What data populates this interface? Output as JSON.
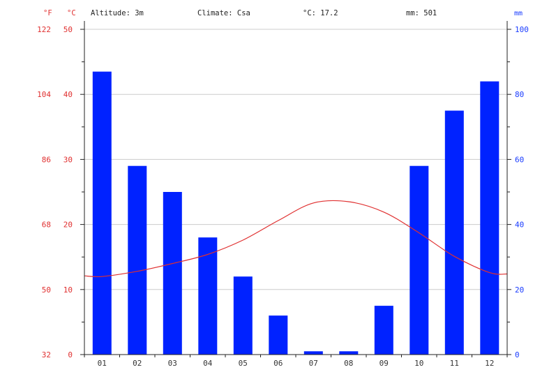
{
  "header": {
    "altitude": "Altitude: 3m",
    "climate": "Climate: Csa",
    "mean_temp": "°C: 17.2",
    "total_precip": "mm: 501"
  },
  "axis_units": {
    "fahrenheit": "°F",
    "celsius": "°C",
    "millimetre": "mm"
  },
  "colors": {
    "temperature": "#ff0000",
    "temperature_line": "#e03030",
    "precipitation": "#0022ff",
    "axis_blue": "#1a3cff",
    "grid": "#cccccc"
  },
  "chart_data": {
    "type": "bar",
    "categories": [
      "01",
      "02",
      "03",
      "04",
      "05",
      "06",
      "07",
      "08",
      "09",
      "10",
      "11",
      "12"
    ],
    "series": [
      {
        "type": "bar",
        "axis": "right",
        "values": [
          87,
          58,
          50,
          36,
          24,
          12,
          1,
          1,
          15,
          58,
          75,
          84
        ]
      },
      {
        "type": "line",
        "axis": "left",
        "values": [
          12.0,
          12.8,
          14.0,
          15.4,
          17.6,
          20.6,
          23.3,
          23.5,
          21.9,
          18.7,
          15.1,
          12.6
        ]
      }
    ],
    "y_left": {
      "unit": "°C",
      "range": [
        0,
        50
      ],
      "ticks": [
        "0",
        "10",
        "20",
        "30",
        "40",
        "50"
      ]
    },
    "y_left_outer": {
      "unit": "°F",
      "ticks": [
        "32",
        "50",
        "68",
        "86",
        "104",
        "122"
      ]
    },
    "y_right": {
      "unit": "mm",
      "range": [
        0,
        100
      ],
      "ticks": [
        "0",
        "20",
        "40",
        "60",
        "80",
        "100"
      ]
    },
    "grid": true,
    "legend": "none"
  }
}
